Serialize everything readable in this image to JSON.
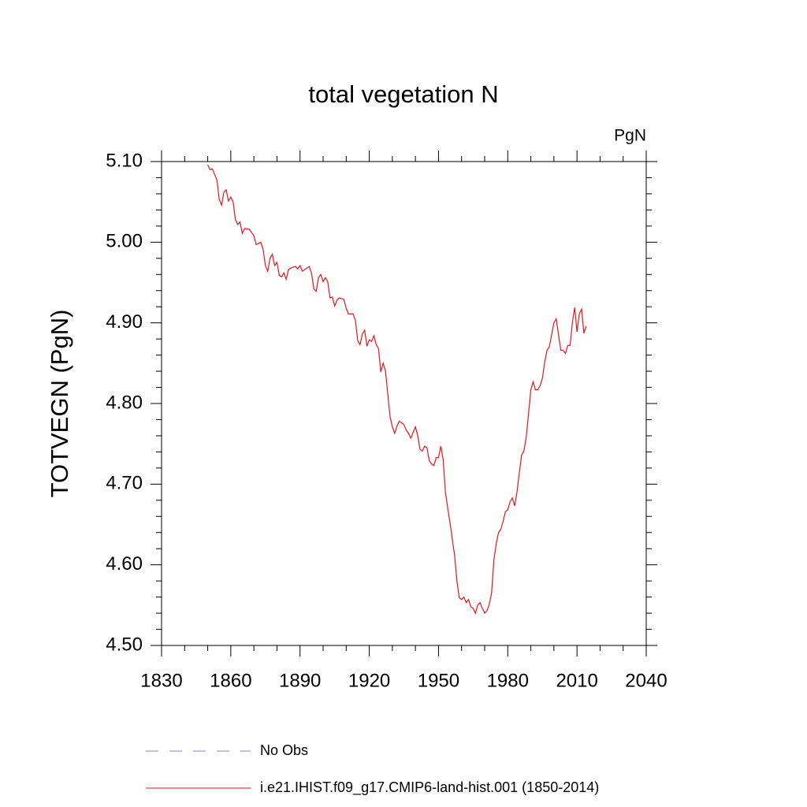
{
  "chart_data": {
    "type": "line",
    "title": "total vegetation N",
    "units": "PgN",
    "y_label": "TOTVEGN  (PgN)",
    "xlim": [
      1830,
      2040
    ],
    "ylim": [
      4.5,
      5.1
    ],
    "xticks": [
      1830,
      1860,
      1890,
      1920,
      1950,
      1980,
      2010,
      2040
    ],
    "yticks": [
      {
        "value": 4.5,
        "label": "4.50"
      },
      {
        "value": 4.6,
        "label": "4.60"
      },
      {
        "value": 4.7,
        "label": "4.70"
      },
      {
        "value": 4.8,
        "label": "4.80"
      },
      {
        "value": 4.9,
        "label": "4.90"
      },
      {
        "value": 5.0,
        "label": "5.00"
      },
      {
        "value": 5.1,
        "label": "5.10"
      }
    ],
    "xminorticks": [
      1840,
      1850,
      1870,
      1880,
      1900,
      1910,
      1930,
      1940,
      1960,
      1970,
      1990,
      2000,
      2020,
      2030
    ],
    "yminorticks": [
      4.52,
      4.54,
      4.56,
      4.58,
      4.62,
      4.64,
      4.66,
      4.68,
      4.72,
      4.74,
      4.76,
      4.78,
      4.82,
      4.84,
      4.86,
      4.88,
      4.92,
      4.94,
      4.96,
      4.98,
      5.02,
      5.04,
      5.06,
      5.08
    ],
    "legend_entries": [
      {
        "name": "No Obs",
        "color": "#8a86c8",
        "dashed": true
      }
    ],
    "x": [
      1850,
      1851,
      1852,
      1854,
      1855,
      1856,
      1857,
      1858,
      1859,
      1860,
      1861,
      1862,
      1863,
      1864,
      1865,
      1866,
      1868,
      1870,
      1871,
      1873,
      1874,
      1875,
      1876,
      1877,
      1878,
      1879,
      1880,
      1881,
      1882,
      1883,
      1884,
      1885,
      1886,
      1888,
      1889,
      1890,
      1891,
      1893,
      1894,
      1895,
      1896,
      1897,
      1898,
      1899,
      1900,
      1901,
      1902,
      1903,
      1904,
      1905,
      1906,
      1907,
      1909,
      1910,
      1911,
      1913,
      1914,
      1915,
      1916,
      1917,
      1918,
      1919,
      1920,
      1921,
      1922,
      1923,
      1924,
      1925,
      1926,
      1927,
      1928,
      1929,
      1930,
      1931,
      1932,
      1933,
      1935,
      1936,
      1937,
      1938,
      1940,
      1941,
      1942,
      1943,
      1944,
      1945,
      1946,
      1947,
      1948,
      1949,
      1950,
      1951,
      1952,
      1953,
      1954,
      1955,
      1956,
      1957,
      1958,
      1959,
      1960,
      1961,
      1962,
      1963,
      1964,
      1965,
      1966,
      1967,
      1968,
      1969,
      1970,
      1971,
      1972,
      1973,
      1974,
      1975,
      1976,
      1977,
      1978,
      1979,
      1980,
      1981,
      1982,
      1983,
      1984,
      1985,
      1986,
      1987,
      1988,
      1989,
      1990,
      1991,
      1992,
      1993,
      1994,
      1995,
      1996,
      1997,
      1998,
      1999,
      2000,
      2001,
      2002,
      2003,
      2004,
      2005,
      2006,
      2007,
      2008,
      2009,
      2010,
      2011,
      2012,
      2013,
      2014
    ],
    "series": [
      {
        "name": "i.e21.IHIST.f09_g17.CMIP6-land-hist.001 (1850-2014)",
        "color": "#e8141c",
        "values": [
          5.096,
          5.09,
          5.091,
          5.077,
          5.053,
          5.046,
          5.062,
          5.065,
          5.051,
          5.056,
          5.05,
          5.028,
          5.022,
          5.025,
          5.011,
          5.017,
          5.016,
          5.008,
          4.997,
          5.0,
          4.991,
          4.971,
          4.964,
          4.98,
          4.985,
          4.971,
          4.975,
          4.959,
          4.957,
          4.962,
          4.954,
          4.966,
          4.968,
          4.97,
          4.967,
          4.971,
          4.964,
          4.968,
          4.97,
          4.961,
          4.942,
          4.939,
          4.956,
          4.96,
          4.951,
          4.956,
          4.951,
          4.931,
          4.932,
          4.921,
          4.928,
          4.931,
          4.929,
          4.918,
          4.911,
          4.911,
          4.903,
          4.878,
          4.873,
          4.886,
          4.891,
          4.871,
          4.879,
          4.877,
          4.884,
          4.873,
          4.868,
          4.839,
          4.85,
          4.841,
          4.812,
          4.784,
          4.771,
          4.763,
          4.772,
          4.778,
          4.774,
          4.767,
          4.763,
          4.757,
          4.771,
          4.76,
          4.743,
          4.741,
          4.747,
          4.745,
          4.729,
          4.725,
          4.723,
          4.733,
          4.733,
          4.747,
          4.731,
          4.69,
          4.67,
          4.652,
          4.631,
          4.611,
          4.579,
          4.559,
          4.557,
          4.56,
          4.553,
          4.557,
          4.548,
          4.546,
          4.54,
          4.55,
          4.553,
          4.546,
          4.54,
          4.543,
          4.551,
          4.565,
          4.606,
          4.626,
          4.64,
          4.644,
          4.654,
          4.666,
          4.668,
          4.678,
          4.683,
          4.673,
          4.69,
          4.714,
          4.736,
          4.741,
          4.758,
          4.787,
          4.817,
          4.827,
          4.817,
          4.817,
          4.822,
          4.831,
          4.851,
          4.866,
          4.87,
          4.885,
          4.9,
          4.905,
          4.885,
          4.866,
          4.866,
          4.862,
          4.872,
          4.872,
          4.9,
          4.919,
          4.889,
          4.911,
          4.917,
          4.887,
          4.896
        ]
      }
    ]
  }
}
